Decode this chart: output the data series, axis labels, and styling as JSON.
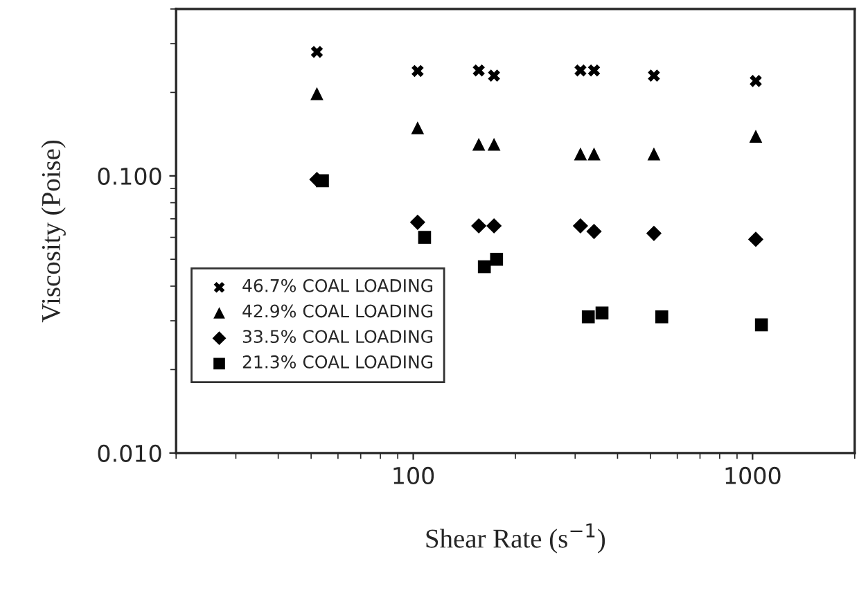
{
  "chart_data": {
    "type": "scatter",
    "xlabel": "Shear Rate (s$^{−1}$)",
    "ylabel": "Viscosity (Poise)",
    "log": "xy",
    "grid": false,
    "legend": "bottom left",
    "xlim": [
      20,
      2000
    ],
    "xticks": [
      100,
      1000
    ],
    "ylim": [
      0.01,
      0.4
    ],
    "yticks": [
      {
        "value": 0.01,
        "label": "0.010"
      },
      {
        "value": 0.1,
        "label": "0.100"
      }
    ],
    "x": [
      52,
      103,
      156,
      173,
      311,
      341,
      512,
      1022
    ],
    "series": [
      {
        "name": "46.7% COAL LOADING",
        "color": "#000000",
        "marker": "cross",
        "values": [
          0.28,
          0.239,
          0.24,
          0.23,
          0.24,
          0.24,
          0.23,
          0.22
        ]
      },
      {
        "name": "42.9% COAL LOADING",
        "color": "#000000",
        "marker": "triangle",
        "values": [
          0.198,
          0.149,
          0.13,
          0.13,
          0.12,
          0.12,
          0.12,
          0.139
        ]
      },
      {
        "name": "33.5% COAL LOADING",
        "color": "#000000",
        "marker": "diamond",
        "values": [
          0.097,
          0.068,
          0.066,
          0.066,
          0.066,
          0.063,
          0.062,
          0.059
        ]
      },
      {
        "name": "21.3% COAL LOADING",
        "color": "#000000",
        "marker": "square",
        "x": [
          54,
          108,
          162,
          176,
          328,
          360,
          540,
          1062
        ],
        "values": [
          0.096,
          0.06,
          0.047,
          0.05,
          0.031,
          0.032,
          0.031,
          0.029
        ]
      }
    ]
  }
}
